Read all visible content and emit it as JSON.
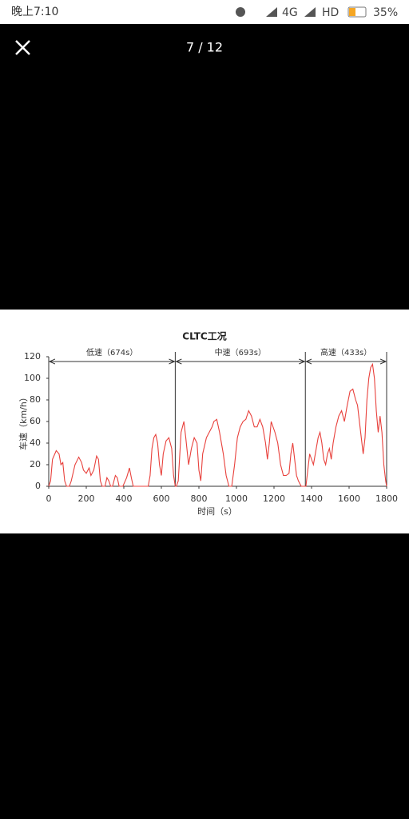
{
  "status_bar": {
    "time": "晚上7:10",
    "network": "4G",
    "hd": "HD",
    "battery": "35%"
  },
  "viewer": {
    "counter": "7 / 12"
  },
  "chart_data": {
    "type": "line",
    "title": "CLTC工况",
    "x_label": "时间（s）",
    "y_label": "车速（km/h）",
    "segments": [
      {
        "label": "低速（674s）",
        "start": 0,
        "end": 674
      },
      {
        "label": "中速（693s）",
        "start": 674,
        "end": 1367
      },
      {
        "label": "高速（433s）",
        "start": 1367,
        "end": 1800
      }
    ],
    "x": [
      0,
      10,
      20,
      40,
      55,
      65,
      75,
      85,
      95,
      110,
      120,
      140,
      160,
      175,
      185,
      200,
      215,
      225,
      240,
      255,
      265,
      275,
      285,
      300,
      310,
      320,
      330,
      340,
      355,
      365,
      375,
      395,
      415,
      430,
      440,
      450,
      530,
      540,
      550,
      560,
      570,
      580,
      590,
      600,
      610,
      625,
      640,
      655,
      665,
      674,
      680,
      690,
      705,
      720,
      730,
      745,
      760,
      775,
      790,
      800,
      810,
      820,
      840,
      855,
      870,
      880,
      895,
      910,
      930,
      945,
      960,
      975,
      990,
      1005,
      1020,
      1035,
      1050,
      1065,
      1080,
      1095,
      1110,
      1125,
      1140,
      1155,
      1165,
      1175,
      1185,
      1195,
      1205,
      1220,
      1235,
      1250,
      1265,
      1280,
      1290,
      1300,
      1310,
      1320,
      1330,
      1345,
      1367,
      1370,
      1380,
      1390,
      1400,
      1410,
      1420,
      1435,
      1445,
      1455,
      1465,
      1475,
      1485,
      1495,
      1505,
      1515,
      1530,
      1545,
      1560,
      1575,
      1590,
      1605,
      1620,
      1635,
      1645,
      1655,
      1665,
      1675,
      1685,
      1695,
      1705,
      1715,
      1725,
      1735,
      1745,
      1755,
      1765,
      1775,
      1785,
      1795,
      1800
    ],
    "series": [
      {
        "name": "车速",
        "color": "#e8413c",
        "values": [
          0,
          5,
          25,
          33,
          30,
          20,
          22,
          5,
          0,
          0,
          5,
          20,
          27,
          22,
          15,
          12,
          17,
          10,
          15,
          28,
          25,
          5,
          0,
          0,
          8,
          5,
          0,
          0,
          10,
          8,
          0,
          0,
          8,
          17,
          8,
          0,
          0,
          10,
          35,
          45,
          48,
          40,
          20,
          10,
          30,
          42,
          45,
          35,
          10,
          0,
          0,
          5,
          50,
          60,
          45,
          20,
          35,
          45,
          40,
          15,
          5,
          30,
          45,
          50,
          55,
          60,
          62,
          50,
          30,
          10,
          0,
          0,
          20,
          45,
          55,
          60,
          62,
          70,
          65,
          55,
          55,
          62,
          55,
          40,
          25,
          40,
          60,
          55,
          50,
          40,
          20,
          10,
          10,
          12,
          30,
          40,
          25,
          10,
          5,
          0,
          0,
          0,
          15,
          30,
          25,
          20,
          30,
          45,
          50,
          40,
          25,
          20,
          30,
          35,
          25,
          40,
          55,
          65,
          70,
          60,
          75,
          88,
          90,
          80,
          75,
          60,
          45,
          30,
          45,
          80,
          100,
          110,
          113,
          100,
          70,
          50,
          65,
          50,
          20,
          5,
          0
        ]
      }
    ],
    "xlim": [
      0,
      1800
    ],
    "xticks": [
      0,
      200,
      400,
      600,
      800,
      1000,
      1200,
      1400,
      1600,
      1800
    ],
    "ylim": [
      0,
      120
    ],
    "yticks": [
      0,
      20,
      40,
      60,
      80,
      100,
      120
    ]
  }
}
